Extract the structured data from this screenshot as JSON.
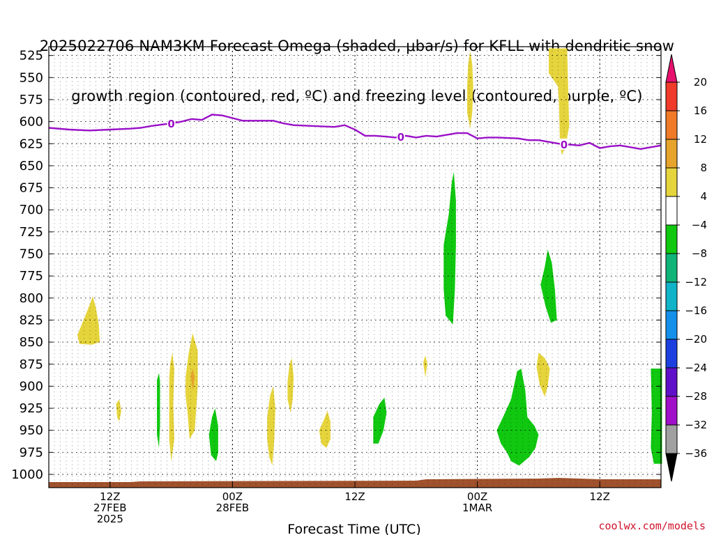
{
  "title": {
    "line1": "2025022706 NAM3KM Forecast Omega (shaded, μbar/s) for KFLL with dendritic snow",
    "line2": "growth region (contoured, red, ºC) and freezing level (contoured, purple, ºC)"
  },
  "credit": "coolwx.com/models",
  "chart_data": {
    "type": "heatmap",
    "xlabel": "Forecast Time (UTC)",
    "x_ticks": [
      {
        "hour": 6,
        "lines": [
          "12Z",
          "27FEB",
          "2025"
        ]
      },
      {
        "hour": 18,
        "lines": [
          "00Z",
          "28FEB"
        ]
      },
      {
        "hour": 30,
        "lines": [
          "12Z"
        ]
      },
      {
        "hour": 42,
        "lines": [
          "00Z",
          "1MAR"
        ]
      },
      {
        "hour": 54,
        "lines": [
          "12Z"
        ]
      }
    ],
    "y_ticks": [
      525,
      550,
      575,
      600,
      625,
      650,
      675,
      700,
      725,
      750,
      775,
      800,
      825,
      850,
      875,
      900,
      925,
      950,
      975,
      1000
    ],
    "y_range_hPa": [
      1015,
      515
    ],
    "x_range_hours": [
      0,
      60
    ],
    "colorbar": {
      "labels": [
        "20",
        "16",
        "12",
        "8",
        "4",
        "−4",
        "−8",
        "−12",
        "−16",
        "−20",
        "−24",
        "−28",
        "−32",
        "−36"
      ],
      "colors": [
        "#e8106e",
        "#f03a2a",
        "#f07a28",
        "#e6a42c",
        "#e6d43c",
        "#ffffff",
        "#10c810",
        "#10b478",
        "#10b4c8",
        "#1490ea",
        "#1c40e0",
        "#6010c8",
        "#a010c8",
        "#a0a0a0",
        "#000000"
      ]
    },
    "freezing_level": {
      "label": "0",
      "color": "#9a10c8",
      "points": [
        [
          0,
          607
        ],
        [
          2,
          609
        ],
        [
          4,
          610
        ],
        [
          6,
          609
        ],
        [
          8,
          608
        ],
        [
          9,
          607
        ],
        [
          10,
          605
        ],
        [
          12,
          602
        ],
        [
          13,
          600
        ],
        [
          14,
          597
        ],
        [
          15,
          598
        ],
        [
          16,
          592
        ],
        [
          17,
          593
        ],
        [
          18,
          596
        ],
        [
          19,
          599
        ],
        [
          20,
          599
        ],
        [
          22,
          599
        ],
        [
          23,
          602
        ],
        [
          24,
          604
        ],
        [
          26,
          605
        ],
        [
          28,
          606
        ],
        [
          29,
          604
        ],
        [
          30,
          609
        ],
        [
          31,
          616
        ],
        [
          32,
          616
        ],
        [
          33,
          617
        ],
        [
          34,
          618
        ],
        [
          35,
          616
        ],
        [
          36,
          618
        ],
        [
          37,
          616
        ],
        [
          38,
          617
        ],
        [
          39,
          615
        ],
        [
          40,
          613
        ],
        [
          41,
          613
        ],
        [
          42,
          619
        ],
        [
          43,
          618
        ],
        [
          44,
          618
        ],
        [
          46,
          619
        ],
        [
          47,
          621
        ],
        [
          48,
          621
        ],
        [
          49,
          623
        ],
        [
          50,
          625
        ],
        [
          51,
          626
        ],
        [
          52,
          627
        ],
        [
          53,
          624
        ],
        [
          54,
          630
        ],
        [
          55,
          628
        ],
        [
          56,
          627
        ],
        [
          57,
          629
        ],
        [
          58,
          631
        ],
        [
          59,
          629
        ],
        [
          60,
          627
        ]
      ],
      "label_hours": [
        12,
        34.5,
        50.5
      ]
    },
    "ground_color": "#a0522d",
    "omega_regions": [
      {
        "sign": "up",
        "value": 6,
        "color": "#e6d43c",
        "points": [
          [
            2.8,
            842
          ],
          [
            3.4,
            825
          ],
          [
            4.0,
            808
          ],
          [
            4.3,
            798
          ],
          [
            4.6,
            810
          ],
          [
            4.9,
            830
          ],
          [
            5.0,
            850
          ],
          [
            4.2,
            853
          ],
          [
            3.0,
            852
          ]
        ]
      },
      {
        "sign": "up",
        "value": 6,
        "color": "#e6d43c",
        "points": [
          [
            6.6,
            920
          ],
          [
            6.9,
            915
          ],
          [
            7.1,
            928
          ],
          [
            6.9,
            940
          ],
          [
            6.7,
            935
          ]
        ]
      },
      {
        "sign": "down",
        "value": -6,
        "color": "#10c810",
        "points": [
          [
            10.6,
            893
          ],
          [
            10.8,
            885
          ],
          [
            10.9,
            895
          ],
          [
            10.9,
            945
          ],
          [
            10.8,
            970
          ],
          [
            10.6,
            955
          ]
        ]
      },
      {
        "sign": "up",
        "value": 6,
        "color": "#e6d43c",
        "points": [
          [
            11.8,
            890
          ],
          [
            11.9,
            875
          ],
          [
            12.1,
            862
          ],
          [
            12.3,
            880
          ],
          [
            12.2,
            920
          ],
          [
            12.3,
            960
          ],
          [
            12.0,
            985
          ],
          [
            11.8,
            960
          ]
        ]
      },
      {
        "sign": "up",
        "value": 6,
        "color": "#e6d43c",
        "points": [
          [
            13.4,
            890
          ],
          [
            13.7,
            863
          ],
          [
            14.1,
            840
          ],
          [
            14.6,
            860
          ],
          [
            14.6,
            900
          ],
          [
            14.3,
            950
          ],
          [
            13.8,
            960
          ],
          [
            13.6,
            930
          ],
          [
            13.4,
            910
          ]
        ]
      },
      {
        "sign": "up",
        "value": 10,
        "color": "#e6a42c",
        "points": [
          [
            13.9,
            888
          ],
          [
            14.1,
            880
          ],
          [
            14.3,
            890
          ],
          [
            14.1,
            905
          ]
        ]
      },
      {
        "sign": "down",
        "value": -6,
        "color": "#10c810",
        "points": [
          [
            15.7,
            955
          ],
          [
            16.0,
            935
          ],
          [
            16.3,
            925
          ],
          [
            16.6,
            945
          ],
          [
            16.6,
            975
          ],
          [
            16.4,
            985
          ],
          [
            15.9,
            978
          ]
        ]
      },
      {
        "sign": "up",
        "value": 6,
        "color": "#e6d43c",
        "points": [
          [
            21.4,
            935
          ],
          [
            21.7,
            910
          ],
          [
            22.0,
            900
          ],
          [
            22.2,
            925
          ],
          [
            22.1,
            960
          ],
          [
            21.9,
            990
          ],
          [
            21.6,
            980
          ],
          [
            21.4,
            960
          ]
        ]
      },
      {
        "sign": "up",
        "value": 6,
        "color": "#e6d43c",
        "points": [
          [
            23.4,
            895
          ],
          [
            23.6,
            875
          ],
          [
            23.8,
            868
          ],
          [
            24.0,
            890
          ],
          [
            23.9,
            915
          ],
          [
            23.7,
            930
          ],
          [
            23.4,
            915
          ]
        ]
      },
      {
        "sign": "up",
        "value": 6,
        "color": "#e6d43c",
        "points": [
          [
            26.5,
            950
          ],
          [
            27.0,
            937
          ],
          [
            27.3,
            928
          ],
          [
            27.6,
            940
          ],
          [
            27.6,
            960
          ],
          [
            27.2,
            970
          ],
          [
            26.7,
            965
          ]
        ]
      },
      {
        "sign": "down",
        "value": -6,
        "color": "#10c810",
        "points": [
          [
            31.8,
            935
          ],
          [
            32.4,
            920
          ],
          [
            32.9,
            913
          ],
          [
            33.1,
            930
          ],
          [
            32.8,
            950
          ],
          [
            32.3,
            965
          ],
          [
            31.8,
            965
          ]
        ]
      },
      {
        "sign": "up",
        "value": 6,
        "color": "#e6d43c",
        "points": [
          [
            36.7,
            873
          ],
          [
            36.9,
            865
          ],
          [
            37.1,
            875
          ],
          [
            36.9,
            890
          ]
        ]
      },
      {
        "sign": "down",
        "value": -6,
        "color": "#10c810",
        "points": [
          [
            38.7,
            740
          ],
          [
            39.2,
            705
          ],
          [
            39.5,
            668
          ],
          [
            39.7,
            657
          ],
          [
            39.9,
            690
          ],
          [
            39.9,
            740
          ],
          [
            39.8,
            790
          ],
          [
            39.6,
            830
          ],
          [
            38.9,
            820
          ],
          [
            38.7,
            790
          ]
        ]
      },
      {
        "sign": "up",
        "value": 6,
        "color": "#e6d43c",
        "points": [
          [
            41.0,
            560
          ],
          [
            41.1,
            535
          ],
          [
            41.3,
            520
          ],
          [
            41.5,
            535
          ],
          [
            41.6,
            560
          ],
          [
            41.5,
            590
          ],
          [
            41.3,
            608
          ],
          [
            41.0,
            590
          ]
        ]
      },
      {
        "sign": "down",
        "value": -6,
        "color": "#10c810",
        "points": [
          [
            43.9,
            950
          ],
          [
            44.6,
            933
          ],
          [
            45.3,
            915
          ],
          [
            45.9,
            883
          ],
          [
            46.3,
            880
          ],
          [
            46.7,
            905
          ],
          [
            46.9,
            935
          ],
          [
            47.6,
            945
          ],
          [
            48.0,
            955
          ],
          [
            47.7,
            970
          ],
          [
            47.1,
            980
          ],
          [
            46.1,
            990
          ],
          [
            45.3,
            985
          ],
          [
            44.9,
            975
          ],
          [
            44.3,
            965
          ]
        ]
      },
      {
        "sign": "up",
        "value": 6,
        "color": "#e6d43c",
        "points": [
          [
            47.8,
            878
          ],
          [
            48.0,
            862
          ],
          [
            48.6,
            868
          ],
          [
            49.1,
            880
          ],
          [
            48.9,
            900
          ],
          [
            48.6,
            912
          ],
          [
            48.1,
            898
          ]
        ]
      },
      {
        "sign": "down",
        "value": -6,
        "color": "#10c810",
        "points": [
          [
            48.2,
            785
          ],
          [
            48.6,
            765
          ],
          [
            48.9,
            745
          ],
          [
            49.3,
            760
          ],
          [
            49.6,
            790
          ],
          [
            49.8,
            825
          ],
          [
            49.2,
            828
          ],
          [
            48.7,
            810
          ]
        ]
      },
      {
        "sign": "up",
        "value": 6,
        "color": "#e6d43c",
        "points": [
          [
            49.0,
            517
          ],
          [
            50.8,
            517
          ],
          [
            50.9,
            560
          ],
          [
            51.0,
            605
          ],
          [
            50.7,
            625
          ],
          [
            50.3,
            638
          ],
          [
            50.1,
            628
          ],
          [
            50.0,
            580
          ],
          [
            49.9,
            560
          ],
          [
            49.0,
            545
          ]
        ]
      },
      {
        "sign": "down",
        "value": -6,
        "color": "#10c810",
        "points": [
          [
            59.0,
            880
          ],
          [
            60.1,
            880
          ],
          [
            60.1,
            988
          ],
          [
            59.3,
            988
          ],
          [
            59.0,
            970
          ],
          [
            59.1,
            930
          ]
        ]
      }
    ]
  }
}
